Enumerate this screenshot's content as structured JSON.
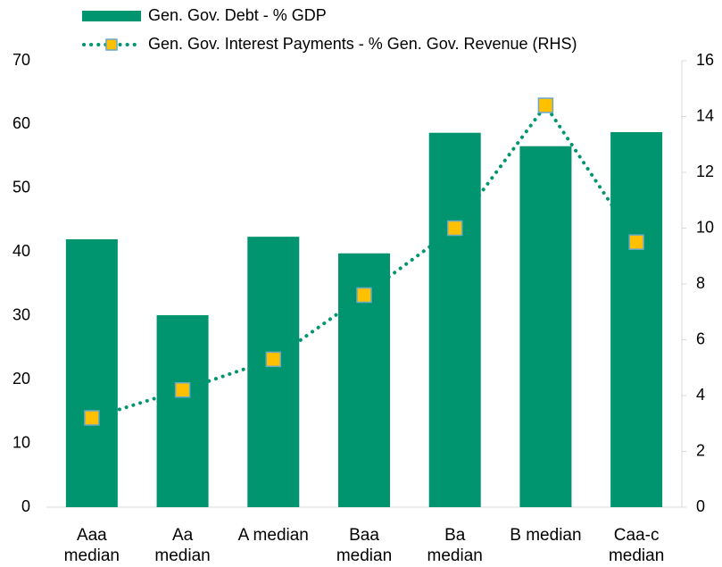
{
  "chart_data": {
    "type": "bar-line",
    "categories": [
      "Aaa median",
      "Aa median",
      "A median",
      "Baa median",
      "Ba median",
      "B median",
      "Caa-c median"
    ],
    "series": [
      {
        "name": "Gen. Gov. Debt - % GDP",
        "type": "bar",
        "color": "#00956e",
        "values": [
          42.0,
          30.1,
          42.4,
          39.8,
          58.7,
          56.6,
          58.8
        ]
      },
      {
        "name": "Gen. Gov. Interest Payments - % Gen. Gov. Revenue (RHS)",
        "type": "line",
        "axis": "y2",
        "color": "#00956e",
        "marker_color": "#ffc000",
        "values": [
          3.2,
          4.2,
          5.3,
          7.6,
          10.0,
          14.4,
          9.5
        ]
      }
    ],
    "ylim": [
      0,
      70
    ],
    "yticks": [
      0,
      10,
      20,
      30,
      40,
      50,
      60,
      70
    ],
    "y2lim": [
      0,
      16
    ],
    "y2ticks": [
      0,
      2,
      4,
      6,
      8,
      10,
      12,
      14,
      16
    ],
    "grid": false
  }
}
